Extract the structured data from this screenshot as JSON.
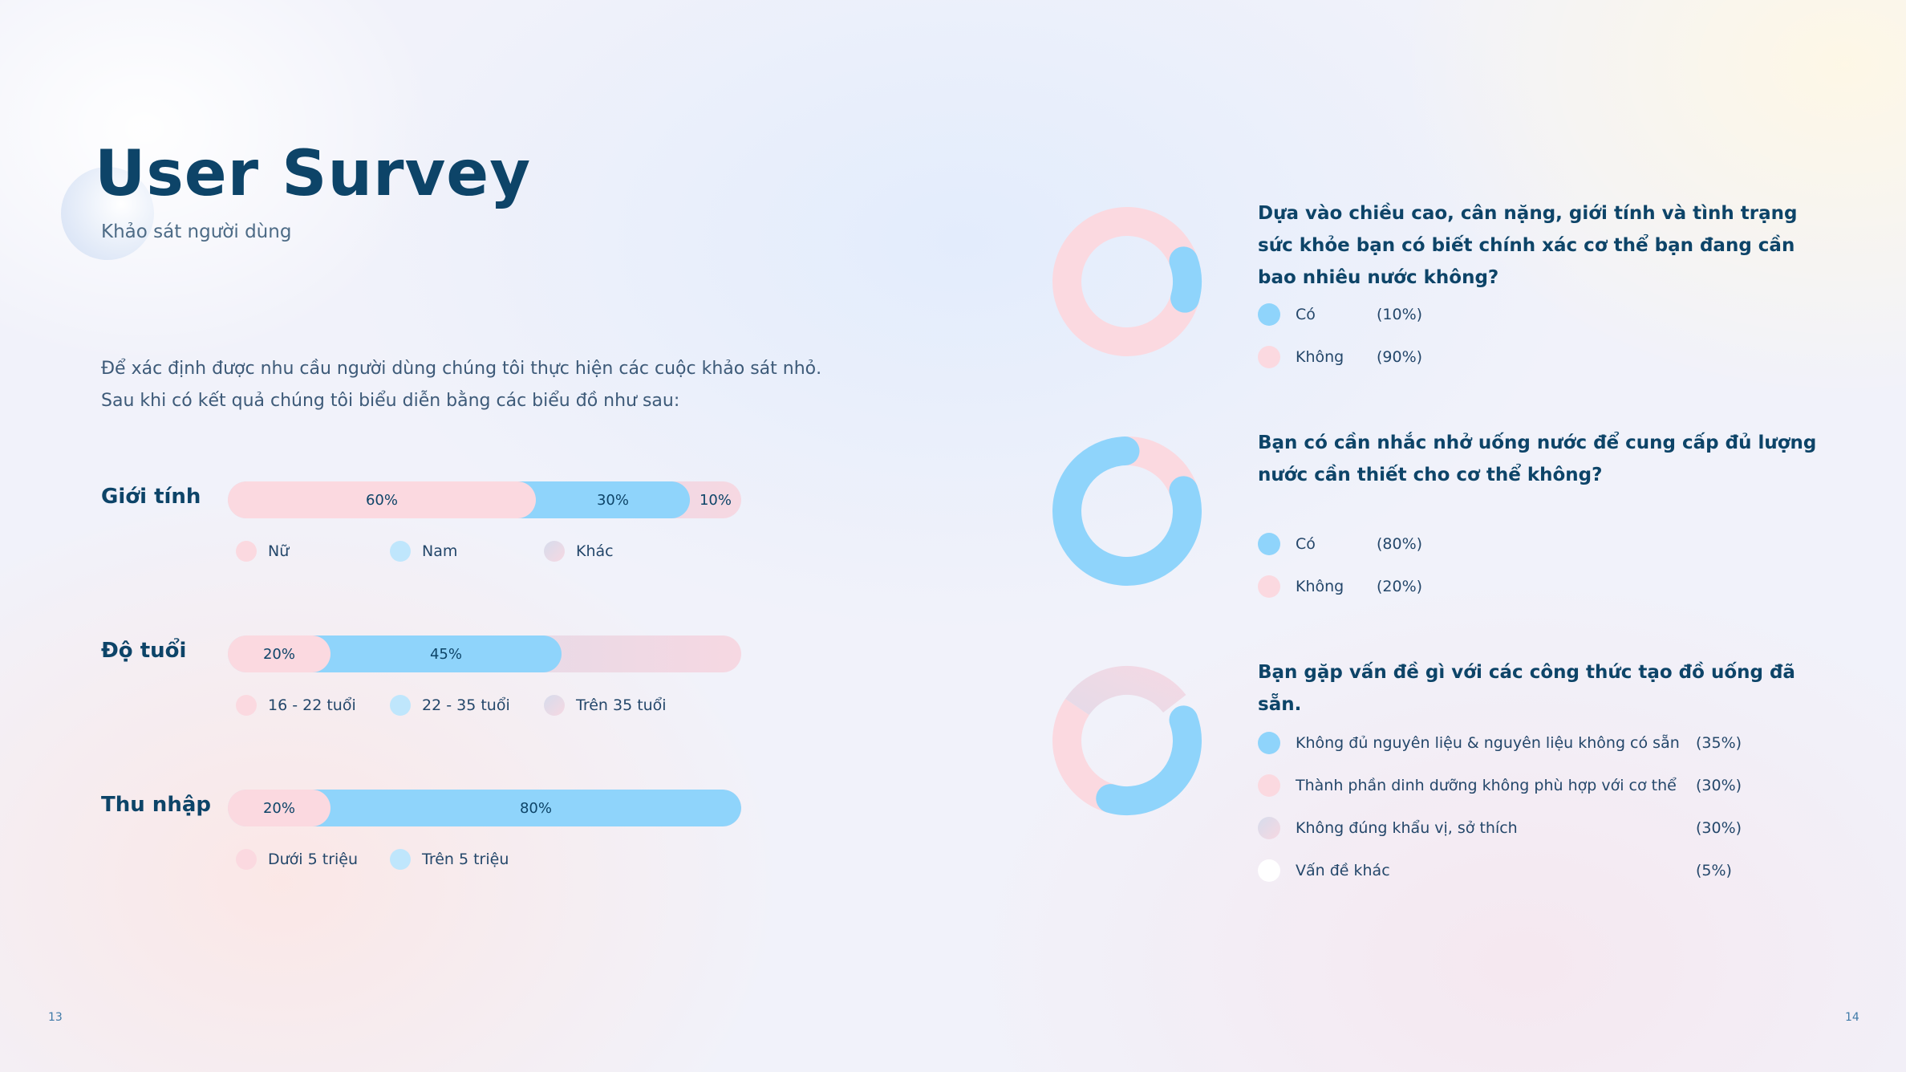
{
  "header": {
    "title": "User Survey",
    "subtitle": "Khảo sát người dùng"
  },
  "intro": [
    "Để xác định được nhu cầu người dùng chúng tôi thực hiện các cuộc khảo sát nhỏ.",
    "Sau khi có kết quả chúng tôi biểu diễn bằng các biểu đồ như sau:"
  ],
  "colors": {
    "pink": "#fbd9e0",
    "blue": "#8fd4fb",
    "lavender": "#d6dcec",
    "white": "#ffffff",
    "text": "#0d4468"
  },
  "chart_data": [
    {
      "type": "bar",
      "stacked": true,
      "orientation": "horizontal",
      "category": "Giới tính",
      "series": [
        {
          "name": "Nữ",
          "value": 60,
          "label": "60%",
          "color": "pink"
        },
        {
          "name": "Nam",
          "value": 30,
          "label": "30%",
          "color": "blue"
        },
        {
          "name": "Khác",
          "value": 10,
          "label": "10%",
          "color": "lavender"
        }
      ]
    },
    {
      "type": "bar",
      "stacked": true,
      "orientation": "horizontal",
      "category": "Độ tuổi",
      "series": [
        {
          "name": "16 - 22 tuổi",
          "value": 20,
          "label": "20%",
          "color": "pink"
        },
        {
          "name": "22 - 35 tuổi",
          "value": 45,
          "label": "45%",
          "color": "blue"
        },
        {
          "name": "Trên 35 tuổi",
          "value": 35,
          "label": "",
          "color": "lavender"
        }
      ]
    },
    {
      "type": "bar",
      "stacked": true,
      "orientation": "horizontal",
      "category": "Thu nhập",
      "series": [
        {
          "name": "Dưới 5 triệu",
          "value": 20,
          "label": "20%",
          "color": "pink"
        },
        {
          "name": "Trên 5 triệu",
          "value": 80,
          "label": "80%",
          "color": "blue"
        }
      ]
    },
    {
      "type": "pie",
      "donut": true,
      "title": "Dựa vào chiều cao, cân nặng, giới tính và tình trạng sức khỏe bạn có biết chính xác cơ thể bạn đang cần bao nhiêu nước không?",
      "slices": [
        {
          "name": "Có",
          "value": 10,
          "label": "(10%)",
          "color": "blue"
        },
        {
          "name": "Không",
          "value": 90,
          "label": "(90%)",
          "color": "pink"
        }
      ]
    },
    {
      "type": "pie",
      "donut": true,
      "title": "Bạn có cần nhắc nhở uống nước để cung cấp đủ lượng nước cần thiết cho cơ thể không?",
      "slices": [
        {
          "name": "Có",
          "value": 80,
          "label": "(80%)",
          "color": "blue"
        },
        {
          "name": "Không",
          "value": 20,
          "label": "(20%)",
          "color": "pink"
        }
      ]
    },
    {
      "type": "pie",
      "donut": true,
      "title": "Bạn gặp vấn đề gì với các công thức tạo đồ uống đã sẵn.",
      "slices": [
        {
          "name": "Không đủ nguyên liệu & nguyên liệu không có sẵn",
          "value": 35,
          "label": "(35%)",
          "color": "blue"
        },
        {
          "name": "Thành phần dinh dưỡng không phù hợp với cơ thể",
          "value": 30,
          "label": "(30%)",
          "color": "pink"
        },
        {
          "name": "Không đúng khẩu vị, sở thích",
          "value": 30,
          "label": "(30%)",
          "color": "lavender"
        },
        {
          "name": "Vấn đề khác",
          "value": 5,
          "label": "(5%)",
          "color": "white"
        }
      ]
    }
  ],
  "page_numbers": {
    "left": "13",
    "right": "14"
  }
}
